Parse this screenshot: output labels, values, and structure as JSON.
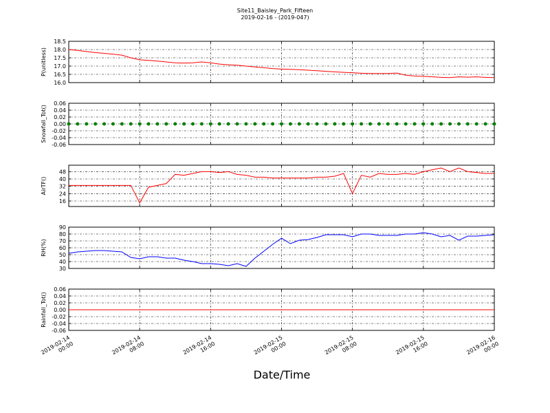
{
  "title": "Site11_Baisley_Park_Fifteen",
  "subtitle": "2019-02-16 - (2019-047)",
  "xlabel": "Date/Time",
  "xlim": [
    "2019-02-14 00:00",
    "2019-02-16 00:00"
  ],
  "xticks": [
    "2019-02-14 00:00",
    "2019-02-14 08:00",
    "2019-02-14 16:00",
    "2019-02-15 00:00",
    "2019-02-15 08:00",
    "2019-02-15 16:00",
    "2019-02-16 00:00"
  ],
  "grid": true,
  "x": [
    "2019-02-14 00:00",
    "2019-02-14 01:00",
    "2019-02-14 02:00",
    "2019-02-14 03:00",
    "2019-02-14 04:00",
    "2019-02-14 05:00",
    "2019-02-14 06:00",
    "2019-02-14 07:00",
    "2019-02-14 08:00",
    "2019-02-14 09:00",
    "2019-02-14 10:00",
    "2019-02-14 11:00",
    "2019-02-14 12:00",
    "2019-02-14 13:00",
    "2019-02-14 14:00",
    "2019-02-14 15:00",
    "2019-02-14 16:00",
    "2019-02-14 17:00",
    "2019-02-14 18:00",
    "2019-02-14 19:00",
    "2019-02-14 20:00",
    "2019-02-14 21:00",
    "2019-02-14 22:00",
    "2019-02-14 23:00",
    "2019-02-15 00:00",
    "2019-02-15 01:00",
    "2019-02-15 02:00",
    "2019-02-15 03:00",
    "2019-02-15 04:00",
    "2019-02-15 05:00",
    "2019-02-15 06:00",
    "2019-02-15 07:00",
    "2019-02-15 08:00",
    "2019-02-15 09:00",
    "2019-02-15 10:00",
    "2019-02-15 11:00",
    "2019-02-15 12:00",
    "2019-02-15 13:00",
    "2019-02-15 14:00",
    "2019-02-15 15:00",
    "2019-02-15 16:00",
    "2019-02-15 17:00",
    "2019-02-15 18:00",
    "2019-02-15 19:00",
    "2019-02-15 20:00",
    "2019-02-15 21:00",
    "2019-02-15 22:00",
    "2019-02-15 23:00",
    "2019-02-16 00:00"
  ],
  "chart_data": [
    {
      "type": "line",
      "ylabel": "P(unitless)",
      "ylim": [
        16.0,
        18.5
      ],
      "yticks": [
        {
          "value": 16.0,
          "label": "16.0"
        },
        16.5,
        {
          "value": 17.0,
          "label": "17.0"
        },
        17.5,
        {
          "value": 18.0,
          "label": "18.0"
        },
        18.5
      ],
      "series": [
        {
          "color": "#ff0000",
          "values": [
            18.0,
            17.95,
            17.88,
            17.82,
            17.77,
            17.72,
            17.66,
            17.5,
            17.38,
            17.35,
            17.3,
            17.25,
            17.2,
            17.18,
            17.2,
            17.25,
            17.2,
            17.12,
            17.08,
            17.05,
            17.0,
            16.95,
            16.9,
            16.85,
            16.82,
            16.8,
            16.78,
            16.75,
            16.72,
            16.68,
            16.65,
            16.62,
            16.6,
            16.57,
            16.55,
            16.55,
            16.55,
            16.58,
            16.45,
            16.4,
            16.38,
            16.35,
            16.32,
            16.3,
            16.35,
            16.33,
            16.35,
            16.32,
            16.3
          ]
        }
      ]
    },
    {
      "type": "scatter",
      "ylabel": "Snowfall_Tot()",
      "ylim": [
        -0.06,
        0.06
      ],
      "yticks": [
        -0.06,
        -0.04,
        -0.02,
        {
          "value": 0,
          "label": "0.00"
        },
        0.02,
        0.04,
        0.06
      ],
      "series": [
        {
          "color": "#008000",
          "values": [
            0,
            0,
            0,
            0,
            0,
            0,
            0,
            0,
            0,
            0,
            0,
            0,
            0,
            0,
            0,
            0,
            0,
            0,
            0,
            0,
            0,
            0,
            0,
            0,
            0,
            0,
            0,
            0,
            0,
            0,
            0,
            0,
            0,
            0,
            0,
            0,
            0,
            0,
            0,
            0,
            0,
            0,
            0,
            0,
            0,
            0,
            0,
            0,
            0
          ]
        }
      ]
    },
    {
      "type": "line",
      "ylabel": "AirTF()",
      "ylim": [
        10,
        55
      ],
      "yticks": [
        16,
        24,
        32,
        40,
        48
      ],
      "series": [
        {
          "color": "#ff0000",
          "values": [
            33,
            33,
            33,
            33,
            33,
            33,
            33,
            33,
            14,
            31,
            33,
            35,
            45,
            44,
            46,
            48,
            48,
            47,
            48,
            45,
            44,
            42,
            42,
            41,
            41,
            41,
            41,
            41,
            42,
            42,
            43,
            46,
            24,
            44,
            42,
            46,
            45,
            45,
            46,
            45,
            48,
            50,
            52,
            48,
            52,
            48,
            47,
            46,
            46
          ]
        }
      ]
    },
    {
      "type": "line",
      "ylabel": "RH(%)",
      "ylim": [
        30,
        90
      ],
      "yticks": [
        30,
        40,
        50,
        60,
        70,
        80,
        90
      ],
      "series": [
        {
          "color": "#0000ff",
          "values": [
            52,
            54,
            55,
            56,
            56,
            55,
            54,
            46,
            44,
            47,
            47,
            45,
            45,
            42,
            40,
            37,
            37,
            36,
            34,
            37,
            33,
            45,
            55,
            65,
            74,
            66,
            71,
            72,
            75,
            79,
            79,
            79,
            76,
            80,
            80,
            78,
            78,
            78,
            80,
            80,
            82,
            80,
            76,
            78,
            71,
            77,
            77,
            78,
            79
          ]
        }
      ]
    },
    {
      "type": "line",
      "ylabel": "Rainfall_Tot()",
      "ylim": [
        -0.06,
        0.06
      ],
      "yticks": [
        -0.06,
        -0.04,
        -0.02,
        {
          "value": 0,
          "label": "0.00"
        },
        0.02,
        0.04,
        0.06
      ],
      "series": [
        {
          "color": "#ff0000",
          "values": [
            0,
            0,
            0,
            0,
            0,
            0,
            0,
            0,
            0,
            0,
            0,
            0,
            0,
            0,
            0,
            0,
            0,
            0,
            0,
            0,
            0,
            0,
            0,
            0,
            0,
            0,
            0,
            0,
            0,
            0,
            0,
            0,
            0,
            0,
            0,
            0,
            0,
            0,
            0,
            0,
            0,
            0,
            0,
            0,
            0,
            0,
            0,
            0,
            0
          ]
        }
      ]
    }
  ]
}
